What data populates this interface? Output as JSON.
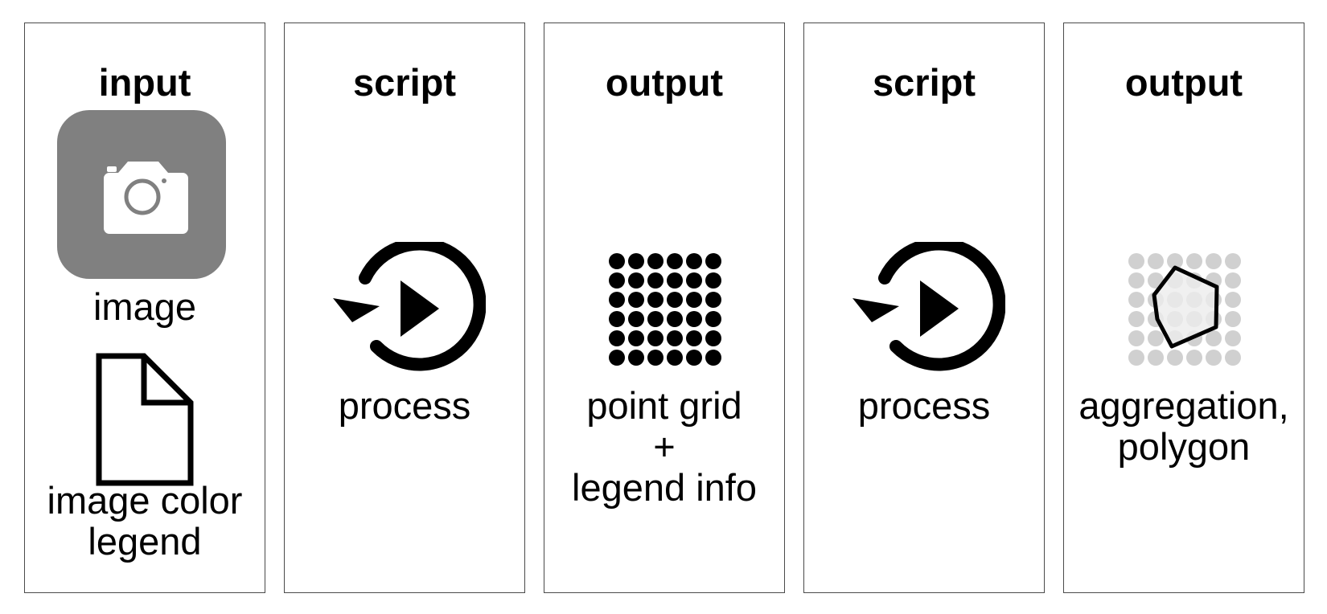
{
  "panels": [
    {
      "title": "input",
      "items": [
        {
          "icon": "camera-icon",
          "label": "image"
        },
        {
          "icon": "document-icon",
          "label": "image color\nlegend"
        }
      ]
    },
    {
      "title": "script",
      "items": [
        {
          "icon": "replay-play-icon",
          "label": "process"
        }
      ]
    },
    {
      "title": "output",
      "items": [
        {
          "icon": "point-grid-icon",
          "label": "point grid\n+\nlegend info"
        }
      ]
    },
    {
      "title": "script",
      "items": [
        {
          "icon": "replay-play-icon",
          "label": "process"
        }
      ]
    },
    {
      "title": "output",
      "items": [
        {
          "icon": "polygon-aggregation-icon",
          "label": "aggregation,\npolygon"
        }
      ]
    }
  ],
  "colors": {
    "panel_border": "#4a4a4a",
    "camera_tile": "#808080",
    "grid_dot_light": "#d0d0d0",
    "polygon_fill": "#ececec"
  }
}
